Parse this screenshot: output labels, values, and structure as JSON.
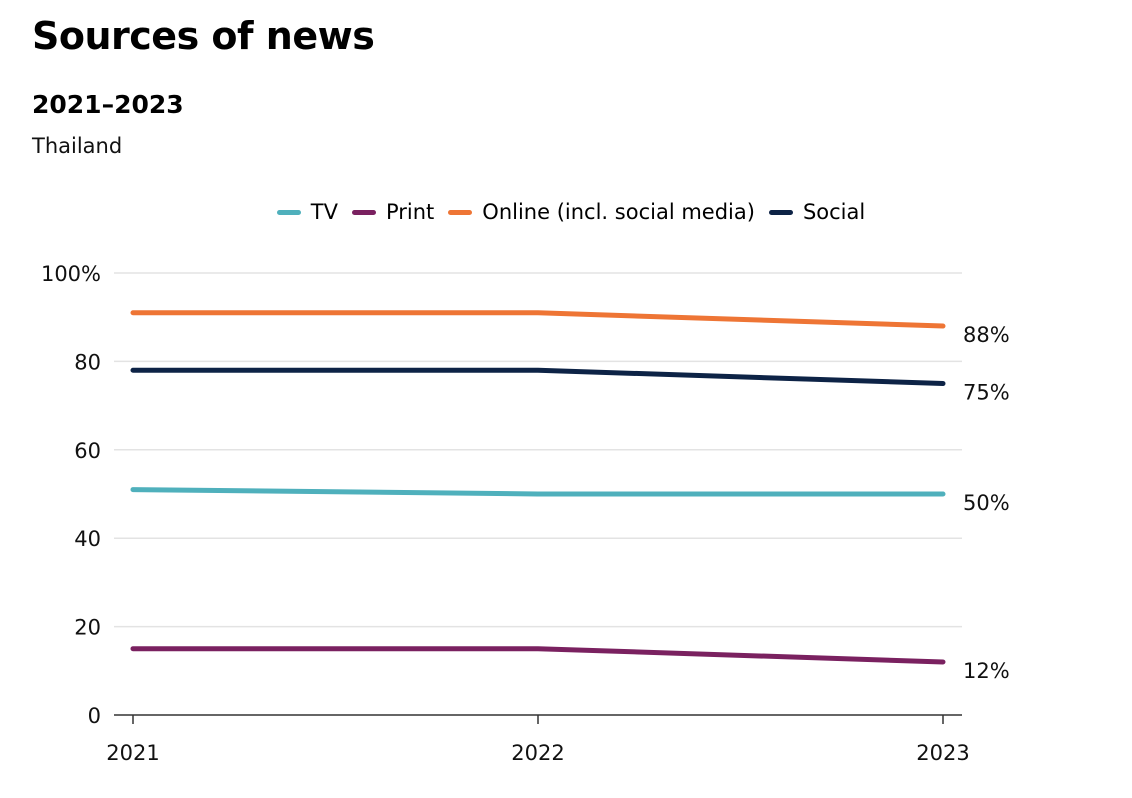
{
  "header": {
    "title": "Sources of news",
    "subtitle": "2021–2023",
    "region": "Thailand"
  },
  "chart_data": {
    "type": "line",
    "title": "Sources of news",
    "subtitle": "2021–2023",
    "note": "Thailand",
    "xlabel": "",
    "ylabel": "",
    "x": [
      "2021",
      "2022",
      "2023"
    ],
    "ylim": [
      0,
      100
    ],
    "yticks": [
      0,
      20,
      40,
      60,
      80,
      100
    ],
    "ytick_labels": [
      "0",
      "20",
      "40",
      "60",
      "80",
      "100%"
    ],
    "grid": true,
    "legend_position": "top-center",
    "series": [
      {
        "name": "TV",
        "color": "#4FB0BC",
        "values": [
          51,
          50,
          50
        ],
        "end_label": "50%"
      },
      {
        "name": "Print",
        "color": "#7A2160",
        "values": [
          15,
          15,
          12
        ],
        "end_label": "12%"
      },
      {
        "name": "Online (incl. social media)",
        "color": "#EE7535",
        "values": [
          91,
          91,
          88
        ],
        "end_label": "88%"
      },
      {
        "name": "Social",
        "color": "#0D2346",
        "values": [
          78,
          78,
          75
        ],
        "end_label": "75%"
      }
    ]
  }
}
